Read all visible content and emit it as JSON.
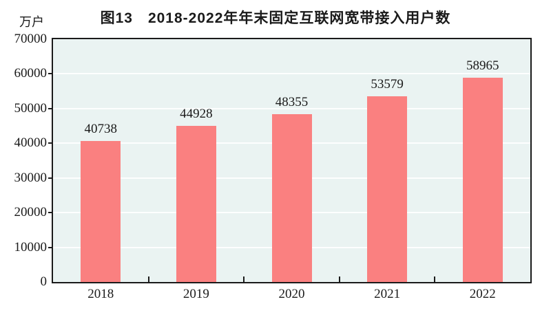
{
  "chart_data": {
    "type": "bar",
    "title": "图13　2018-2022年年末固定互联网宽带接入用户数",
    "unit_label": "万户",
    "categories": [
      "2018",
      "2019",
      "2020",
      "2021",
      "2022"
    ],
    "values": [
      40738,
      44928,
      48355,
      53579,
      58965
    ],
    "xlabel": "",
    "ylabel": "万户",
    "ylim": [
      0,
      70000
    ],
    "y_ticks": [
      0,
      10000,
      20000,
      30000,
      40000,
      50000,
      60000,
      70000
    ],
    "grid": true,
    "legend": "none",
    "bar_color": "#fa8080",
    "plot_bg": "#eaf3f2",
    "grid_color": "#fdfefe",
    "axis_color": "#1a1a1a",
    "label_color": "#1a1a1a"
  }
}
